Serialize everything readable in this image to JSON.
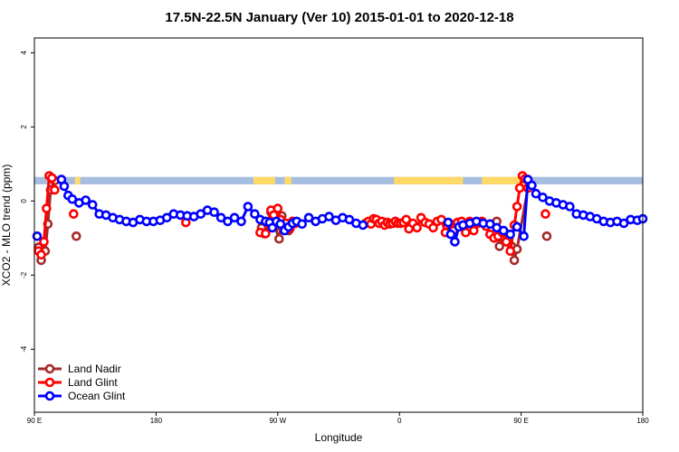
{
  "chart_data": {
    "type": "line",
    "title": "17.5N-22.5N January (Ver 10)   2015-01-01 to 2020-12-18",
    "xlabel": "Longitude",
    "ylabel": "XCO2 - MLO trend (ppm)",
    "xlim": [
      90,
      540
    ],
    "ylim": [
      -5.7,
      4.4
    ],
    "x_ticks": [
      {
        "value": 90,
        "label": "90 E"
      },
      {
        "value": 180,
        "label": "180"
      },
      {
        "value": 270,
        "label": "90 W"
      },
      {
        "value": 360,
        "label": "0"
      },
      {
        "value": 450,
        "label": "90 E"
      },
      {
        "value": 540,
        "label": "180"
      }
    ],
    "y_ticks": [
      {
        "value": -4,
        "label": "-4"
      },
      {
        "value": -2,
        "label": "-2"
      },
      {
        "value": 0,
        "label": "0"
      },
      {
        "value": 2,
        "label": "2"
      },
      {
        "value": 4,
        "label": "4"
      }
    ],
    "grid": false,
    "legend_position": "bottom-left",
    "land_ocean_band": {
      "y_bottom": 0.45,
      "y_top": 0.65,
      "ocean_color": "#a5bde0",
      "land_color": "#ffd966",
      "land_ranges": [
        [
          120,
          124
        ],
        [
          252,
          268
        ],
        [
          275,
          280
        ],
        [
          356,
          407
        ],
        [
          421,
          454
        ]
      ]
    },
    "series": [
      {
        "name": "Land Nadir",
        "color": "#a52a2a",
        "x": [
          93,
          95,
          98,
          100,
          102,
          105,
          121,
          258,
          260,
          265,
          268,
          271,
          273,
          275,
          278,
          432,
          434,
          436,
          443,
          445,
          447,
          455,
          469
        ],
        "y": [
          -1.25,
          -1.6,
          -1.35,
          -0.62,
          0.3,
          0.55,
          -0.95,
          -0.72,
          -0.88,
          -0.3,
          -0.7,
          -1.02,
          -0.4,
          -0.78,
          -0.8,
          -0.55,
          -1.22,
          -0.95,
          -1.22,
          -1.6,
          -1.3,
          0.35,
          -0.95
        ]
      },
      {
        "name": "Land Glint",
        "color": "#ff0000",
        "x": [
          93,
          95,
          97,
          99,
          101,
          103,
          105,
          119,
          202,
          257,
          261,
          265,
          267,
          270,
          272,
          274,
          276,
          279,
          281,
          283,
          335,
          337,
          339,
          341,
          343,
          345,
          347,
          349,
          351,
          353,
          355,
          357,
          359,
          361,
          363,
          365,
          367,
          370,
          373,
          376,
          379,
          382,
          385,
          388,
          391,
          394,
          397,
          400,
          403,
          406,
          409,
          412,
          415,
          418,
          421,
          424,
          427,
          430,
          433,
          436,
          439,
          442,
          445,
          447,
          449,
          451,
          453,
          455,
          468
        ],
        "y": [
          -1.35,
          -1.45,
          -1.1,
          -0.2,
          0.68,
          0.62,
          0.3,
          -0.35,
          -0.58,
          -0.85,
          -0.88,
          -0.25,
          -0.38,
          -0.2,
          -0.5,
          -0.7,
          -0.6,
          -0.75,
          -0.55,
          -0.6,
          -0.6,
          -0.55,
          -0.62,
          -0.48,
          -0.5,
          -0.6,
          -0.55,
          -0.65,
          -0.58,
          -0.62,
          -0.6,
          -0.55,
          -0.6,
          -0.6,
          -0.58,
          -0.5,
          -0.75,
          -0.6,
          -0.72,
          -0.45,
          -0.58,
          -0.62,
          -0.72,
          -0.55,
          -0.5,
          -0.85,
          -0.6,
          -0.8,
          -0.58,
          -0.55,
          -0.85,
          -0.55,
          -0.8,
          -0.6,
          -0.55,
          -0.68,
          -0.9,
          -1.0,
          -0.95,
          -0.85,
          -1.1,
          -1.35,
          -0.65,
          -0.15,
          0.35,
          0.68,
          0.6,
          0.35,
          -0.35
        ]
      },
      {
        "name": "Ocean Glint",
        "color": "#0000ff",
        "x": [
          92,
          110,
          112,
          115,
          118,
          123,
          128,
          133,
          138,
          143,
          148,
          153,
          158,
          163,
          168,
          173,
          178,
          183,
          188,
          193,
          198,
          203,
          208,
          213,
          218,
          223,
          228,
          233,
          238,
          243,
          248,
          253,
          257,
          261,
          264,
          266,
          269,
          272,
          275,
          278,
          281,
          284,
          288,
          293,
          298,
          303,
          308,
          313,
          318,
          323,
          328,
          333,
          396,
          398,
          401,
          404,
          407,
          412,
          417,
          422,
          427,
          432,
          437,
          442,
          447,
          452,
          455,
          458,
          461,
          466,
          471,
          476,
          481,
          486,
          491,
          496,
          501,
          506,
          511,
          516,
          521,
          526,
          531,
          536,
          540
        ],
        "y": [
          -0.95,
          0.58,
          0.4,
          0.15,
          0.05,
          -0.05,
          0.02,
          -0.1,
          -0.35,
          -0.38,
          -0.45,
          -0.5,
          -0.55,
          -0.58,
          -0.5,
          -0.55,
          -0.55,
          -0.52,
          -0.45,
          -0.35,
          -0.38,
          -0.4,
          -0.42,
          -0.35,
          -0.25,
          -0.3,
          -0.45,
          -0.55,
          -0.45,
          -0.55,
          -0.15,
          -0.35,
          -0.5,
          -0.55,
          -0.58,
          -0.72,
          -0.55,
          -0.62,
          -0.8,
          -0.7,
          -0.6,
          -0.55,
          -0.62,
          -0.45,
          -0.55,
          -0.48,
          -0.42,
          -0.52,
          -0.45,
          -0.5,
          -0.6,
          -0.65,
          -0.58,
          -0.9,
          -1.1,
          -0.7,
          -0.65,
          -0.6,
          -0.55,
          -0.6,
          -0.62,
          -0.72,
          -0.8,
          -0.9,
          -0.7,
          -0.95,
          0.58,
          0.42,
          0.2,
          0.1,
          0.0,
          -0.05,
          -0.1,
          -0.15,
          -0.35,
          -0.38,
          -0.42,
          -0.48,
          -0.55,
          -0.58,
          -0.55,
          -0.6,
          -0.5,
          -0.52,
          -0.48
        ]
      }
    ]
  }
}
